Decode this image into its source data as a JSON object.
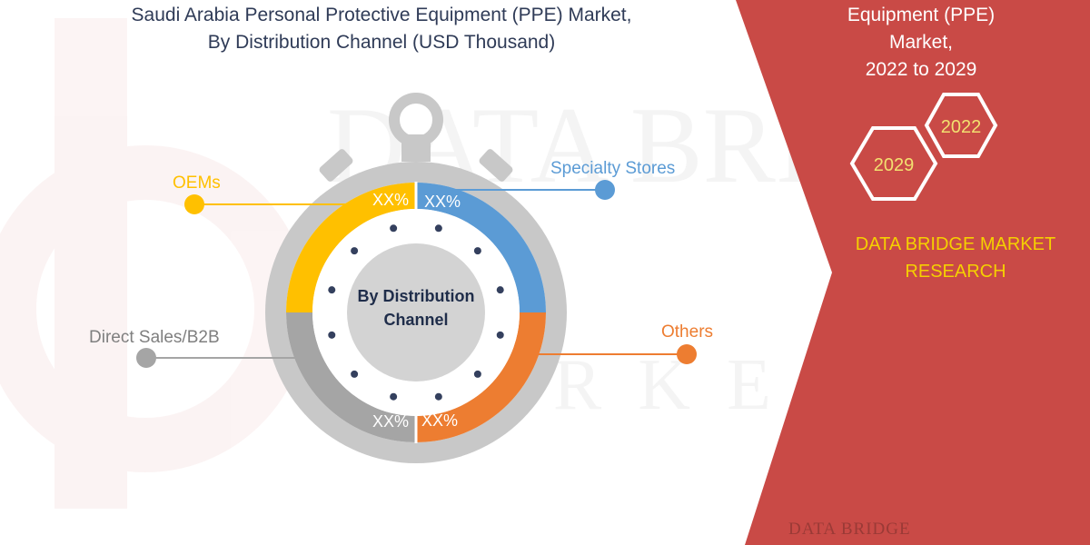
{
  "title": {
    "line1": "Saudi Arabia Personal Protective Equipment (PPE) Market,",
    "line2": "By Distribution Channel (USD Thousand)"
  },
  "right_panel": {
    "title_line1": "Equipment (PPE) Market,",
    "title_line2": "2022 to 2029",
    "hex_year_a": "2022",
    "hex_year_b": "2029",
    "brand_line1": "DATA BRIDGE MARKET",
    "brand_line2": "RESEARCH",
    "footer_logo_text": "DATA BRIDGE",
    "panel_color": "#c94a46",
    "brand_color": "#f5d000"
  },
  "chart_data": {
    "type": "pie",
    "center_label_line1": "By Distribution",
    "center_label_line2": "Channel",
    "segments": [
      {
        "name": "Specialty Stores",
        "value_label": "XX%",
        "color": "#5b9bd5"
      },
      {
        "name": "Others",
        "value_label": "XX%",
        "color": "#ed7d31"
      },
      {
        "name": "Direct Sales/B2B",
        "value_label": "XX%",
        "color": "#a5a5a5"
      },
      {
        "name": "OEMs",
        "value_label": "XX%",
        "color": "#ffc000"
      }
    ]
  }
}
